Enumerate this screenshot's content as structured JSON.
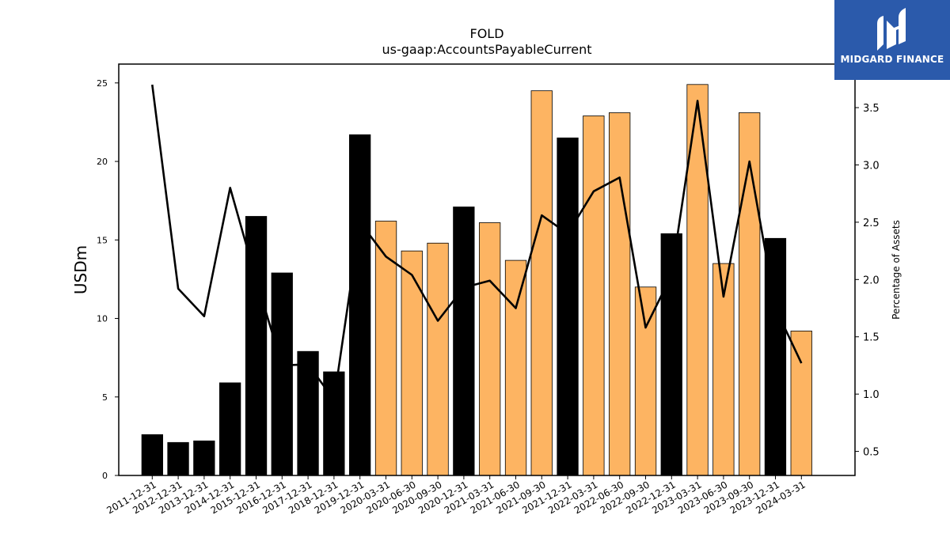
{
  "chart_data": {
    "type": "bar",
    "title": "FOLD",
    "subtitle": "us-gaap:AccountsPayableCurrent",
    "ylabel": "USDm",
    "ylabel_right": "Percentage of Assets",
    "ylim": [
      0,
      26.2
    ],
    "ylim_right": [
      0.29,
      3.88
    ],
    "yticks": [
      0,
      5,
      10,
      15,
      20,
      25
    ],
    "yticks_right": [
      0.5,
      1.0,
      1.5,
      2.0,
      2.5,
      3.0,
      3.5
    ],
    "categories": [
      "2011-12-31",
      "2012-12-31",
      "2013-12-31",
      "2014-12-31",
      "2015-12-31",
      "2016-12-31",
      "2017-12-31",
      "2018-12-31",
      "2019-12-31",
      "2020-03-31",
      "2020-06-30",
      "2020-09-30",
      "2020-12-31",
      "2021-03-31",
      "2021-06-30",
      "2021-09-30",
      "2021-12-31",
      "2022-03-31",
      "2022-06-30",
      "2022-09-30",
      "2022-12-31",
      "2023-03-31",
      "2023-06-30",
      "2023-09-30",
      "2023-12-31",
      "2024-03-31"
    ],
    "series": [
      {
        "type": "bar",
        "values": [
          2.6,
          2.1,
          2.2,
          5.9,
          16.5,
          12.9,
          7.9,
          6.6,
          21.7,
          16.2,
          14.3,
          14.8,
          17.1,
          16.1,
          13.7,
          24.5,
          21.5,
          22.9,
          23.1,
          12.0,
          15.4,
          24.9,
          13.5,
          23.1,
          15.1,
          9.2
        ],
        "period": [
          "annual",
          "annual",
          "annual",
          "annual",
          "annual",
          "annual",
          "annual",
          "annual",
          "annual",
          "quarterly",
          "quarterly",
          "quarterly",
          "annual",
          "quarterly",
          "quarterly",
          "quarterly",
          "annual",
          "quarterly",
          "quarterly",
          "quarterly",
          "annual",
          "quarterly",
          "quarterly",
          "quarterly",
          "annual",
          "quarterly"
        ]
      },
      {
        "type": "line",
        "axis": "right",
        "values": [
          3.7,
          1.92,
          1.68,
          2.8,
          2.0,
          1.25,
          1.26,
          0.95,
          2.5,
          2.2,
          2.04,
          1.64,
          1.93,
          1.99,
          1.75,
          2.56,
          2.4,
          2.77,
          2.89,
          1.58,
          2.04,
          3.56,
          1.85,
          3.03,
          1.75,
          1.27
        ]
      }
    ],
    "colors": {
      "annual": "#000000",
      "quarterly": "#fdb462",
      "line": "#000000"
    }
  },
  "logo": {
    "text": "MIDGARD FINANCE",
    "icon": "midgard-m-icon"
  }
}
